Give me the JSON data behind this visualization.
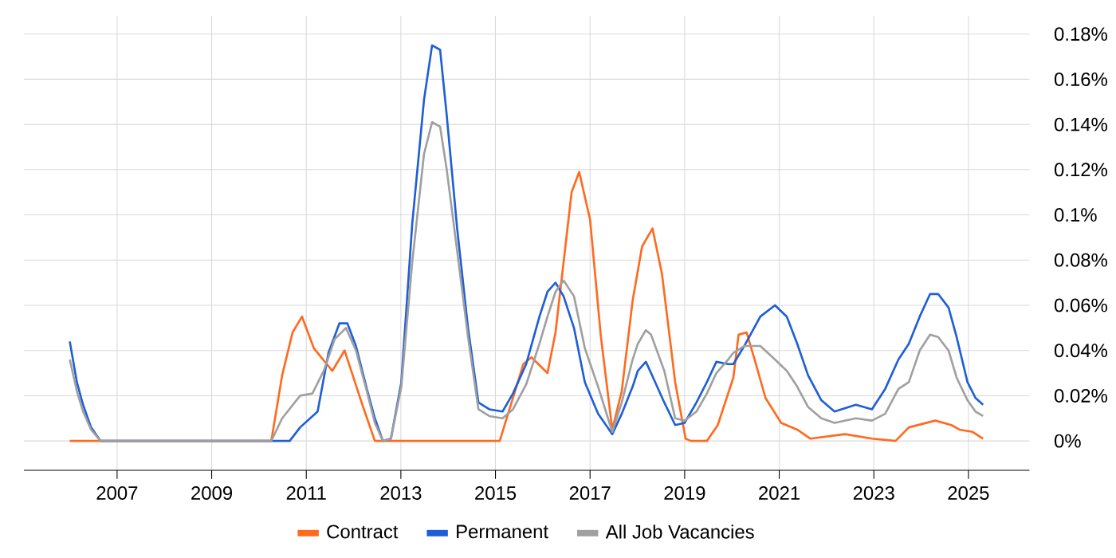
{
  "chart_data": {
    "type": "line",
    "xlim": [
      2005.03,
      2026.29
    ],
    "ylim": [
      -0.013,
      0.188
    ],
    "xticks": [
      2007,
      2009,
      2011,
      2013,
      2015,
      2017,
      2019,
      2021,
      2023,
      2025
    ],
    "yticks": [
      {
        "value": 0,
        "label": "0%"
      },
      {
        "value": 0.02,
        "label": "0.02%"
      },
      {
        "value": 0.04,
        "label": "0.04%"
      },
      {
        "value": 0.06,
        "label": "0.06%"
      },
      {
        "value": 0.08,
        "label": "0.08%"
      },
      {
        "value": 0.1,
        "label": "0.1%"
      },
      {
        "value": 0.12,
        "label": "0.12%"
      },
      {
        "value": 0.14,
        "label": "0.14%"
      },
      {
        "value": 0.16,
        "label": "0.16%"
      },
      {
        "value": 0.18,
        "label": "0.18%"
      }
    ],
    "grid": true,
    "legend": "bottom",
    "series": [
      {
        "name": "Contract",
        "color": "#ff6a1f",
        "x": [
          2006.0,
          2008.0,
          2010.26,
          2010.49,
          2010.71,
          2010.91,
          2011.16,
          2011.55,
          2011.81,
          2012.17,
          2012.45,
          2014.0,
          2015.09,
          2015.59,
          2015.76,
          2016.1,
          2016.27,
          2016.61,
          2016.77,
          2017.0,
          2017.23,
          2017.47,
          2017.67,
          2017.9,
          2018.1,
          2018.32,
          2018.52,
          2018.8,
          2019.02,
          2019.13,
          2019.47,
          2019.7,
          2020.03,
          2020.14,
          2020.31,
          2020.48,
          2020.71,
          2021.04,
          2021.38,
          2021.66,
          2022.39,
          2022.96,
          2023.46,
          2023.74,
          2024.3,
          2024.64,
          2024.81,
          2025.09,
          2025.31
        ],
        "values": [
          0,
          0,
          0,
          0.029,
          0.048,
          0.055,
          0.041,
          0.031,
          0.04,
          0.017,
          0,
          0,
          0,
          0.034,
          0.037,
          0.03,
          0.048,
          0.11,
          0.119,
          0.098,
          0.046,
          0.005,
          0.022,
          0.062,
          0.086,
          0.094,
          0.074,
          0.026,
          0.001,
          0,
          0,
          0.007,
          0.028,
          0.047,
          0.048,
          0.036,
          0.019,
          0.008,
          0.005,
          0.001,
          0.003,
          0.001,
          0,
          0.006,
          0.009,
          0.007,
          0.005,
          0.004,
          0.001
        ]
      },
      {
        "name": "Permanent",
        "color": "#1f5fd6",
        "x": [
          2006.0,
          2006.15,
          2006.28,
          2006.45,
          2006.65,
          2008.5,
          2010.65,
          2010.87,
          2011.24,
          2011.47,
          2011.7,
          2011.87,
          2012.05,
          2012.28,
          2012.45,
          2012.62,
          2012.79,
          2013.01,
          2013.24,
          2013.49,
          2013.66,
          2013.83,
          2013.97,
          2014.19,
          2014.42,
          2014.64,
          2014.87,
          2015.15,
          2015.37,
          2015.65,
          2015.93,
          2016.1,
          2016.27,
          2016.44,
          2016.66,
          2016.89,
          2017.17,
          2017.47,
          2017.67,
          2017.9,
          2018.01,
          2018.18,
          2018.29,
          2018.57,
          2018.8,
          2019.0,
          2019.25,
          2019.47,
          2019.67,
          2019.92,
          2020.03,
          2020.26,
          2020.6,
          2020.91,
          2021.16,
          2021.38,
          2021.61,
          2021.89,
          2022.17,
          2022.62,
          2022.96,
          2023.24,
          2023.52,
          2023.74,
          2023.97,
          2024.19,
          2024.36,
          2024.58,
          2024.75,
          2024.98,
          2025.15,
          2025.31
        ],
        "values": [
          0.044,
          0.026,
          0.016,
          0.006,
          0,
          0,
          0,
          0.006,
          0.013,
          0.039,
          0.052,
          0.052,
          0.042,
          0.023,
          0.01,
          0,
          0.001,
          0.026,
          0.096,
          0.151,
          0.175,
          0.173,
          0.144,
          0.094,
          0.05,
          0.017,
          0.014,
          0.013,
          0.021,
          0.034,
          0.055,
          0.066,
          0.07,
          0.064,
          0.05,
          0.026,
          0.012,
          0.003,
          0.012,
          0.024,
          0.031,
          0.035,
          0.03,
          0.017,
          0.007,
          0.008,
          0.017,
          0.026,
          0.035,
          0.034,
          0.034,
          0.042,
          0.055,
          0.06,
          0.055,
          0.043,
          0.029,
          0.018,
          0.013,
          0.016,
          0.014,
          0.023,
          0.036,
          0.043,
          0.055,
          0.065,
          0.065,
          0.059,
          0.046,
          0.026,
          0.019,
          0.016
        ]
      },
      {
        "name": "All Job Vacancies",
        "color": "#a0a0a0",
        "x": [
          2006.0,
          2006.15,
          2006.28,
          2006.45,
          2006.65,
          2008.5,
          2010.26,
          2010.49,
          2010.87,
          2011.13,
          2011.37,
          2011.6,
          2011.84,
          2012.05,
          2012.28,
          2012.45,
          2012.62,
          2012.79,
          2013.01,
          2013.24,
          2013.49,
          2013.66,
          2013.83,
          2013.97,
          2014.19,
          2014.42,
          2014.64,
          2014.87,
          2015.15,
          2015.37,
          2015.65,
          2015.93,
          2016.1,
          2016.27,
          2016.44,
          2016.66,
          2016.89,
          2017.17,
          2017.47,
          2017.67,
          2017.9,
          2018.01,
          2018.18,
          2018.29,
          2018.57,
          2018.8,
          2019.0,
          2019.25,
          2019.47,
          2019.67,
          2019.92,
          2020.03,
          2020.26,
          2020.6,
          2020.91,
          2021.16,
          2021.38,
          2021.61,
          2021.89,
          2022.17,
          2022.62,
          2022.96,
          2023.24,
          2023.52,
          2023.74,
          2023.97,
          2024.19,
          2024.36,
          2024.58,
          2024.75,
          2024.98,
          2025.15,
          2025.31
        ],
        "values": [
          0.036,
          0.022,
          0.013,
          0.005,
          0,
          0,
          0,
          0.01,
          0.02,
          0.021,
          0.031,
          0.045,
          0.05,
          0.04,
          0.022,
          0.008,
          0,
          0.001,
          0.024,
          0.079,
          0.127,
          0.141,
          0.139,
          0.12,
          0.084,
          0.046,
          0.014,
          0.011,
          0.01,
          0.014,
          0.025,
          0.043,
          0.055,
          0.066,
          0.071,
          0.064,
          0.041,
          0.024,
          0.004,
          0.017,
          0.036,
          0.043,
          0.049,
          0.047,
          0.031,
          0.01,
          0.009,
          0.013,
          0.021,
          0.03,
          0.036,
          0.039,
          0.042,
          0.042,
          0.036,
          0.031,
          0.024,
          0.015,
          0.01,
          0.008,
          0.01,
          0.009,
          0.012,
          0.023,
          0.026,
          0.04,
          0.047,
          0.046,
          0.04,
          0.028,
          0.018,
          0.013,
          0.011
        ]
      }
    ]
  }
}
